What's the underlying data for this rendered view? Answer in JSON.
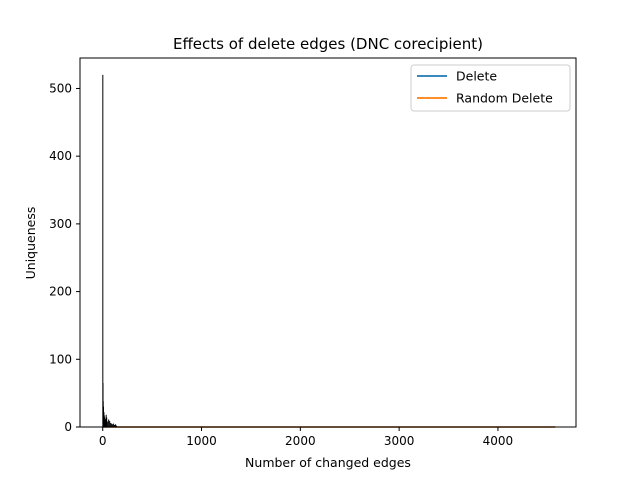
{
  "chart_data": {
    "type": "line",
    "title": "Effects of delete edges (DNC corecipient)",
    "xlabel": "Number of changed edges",
    "ylabel": "Uniqueness",
    "xlim": [
      -230,
      4790
    ],
    "ylim": [
      0,
      545
    ],
    "xticks": [
      0,
      1000,
      2000,
      3000,
      4000
    ],
    "yticks": [
      0,
      100,
      200,
      300,
      400,
      500
    ],
    "grid": false,
    "legend_position": "top-right",
    "spike_color": "#000000",
    "spikes": [
      {
        "x": 1,
        "y": 520
      },
      {
        "x": 3,
        "y": 65
      },
      {
        "x": 5,
        "y": 38
      },
      {
        "x": 8,
        "y": 30
      },
      {
        "x": 12,
        "y": 22
      },
      {
        "x": 16,
        "y": 17
      },
      {
        "x": 20,
        "y": 14
      },
      {
        "x": 25,
        "y": 12
      },
      {
        "x": 30,
        "y": 10
      },
      {
        "x": 35,
        "y": 18
      },
      {
        "x": 40,
        "y": 14
      },
      {
        "x": 50,
        "y": 8
      },
      {
        "x": 60,
        "y": 11
      },
      {
        "x": 70,
        "y": 9
      },
      {
        "x": 80,
        "y": 6
      },
      {
        "x": 90,
        "y": 5
      },
      {
        "x": 100,
        "y": 4
      },
      {
        "x": 110,
        "y": 5
      },
      {
        "x": 120,
        "y": 3
      },
      {
        "x": 130,
        "y": 4
      },
      {
        "x": 140,
        "y": 2
      }
    ],
    "series": [
      {
        "name": "Delete",
        "color": "#1f77b4",
        "x": [
          0,
          4580
        ],
        "y": [
          0,
          0
        ]
      },
      {
        "name": "Random Delete",
        "color": "#ff7f0e",
        "x": [
          0,
          4580
        ],
        "y": [
          0,
          0
        ]
      }
    ]
  }
}
